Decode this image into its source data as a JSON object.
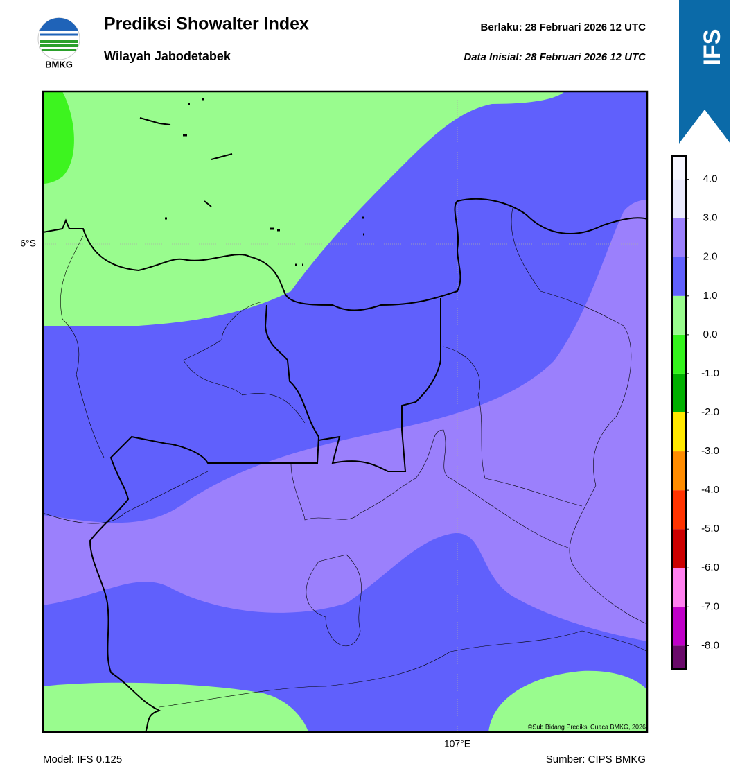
{
  "header": {
    "title": "Prediksi Showalter Index",
    "subtitle": "Wilayah Jabodetabek",
    "valid": "Berlaku:  28 Februari 2026 12 UTC",
    "init": "Data Inisial:  28 Februari 2026 12 UTC"
  },
  "logo": {
    "label": "BMKG"
  },
  "banner": {
    "label": "IFS"
  },
  "map": {
    "lat_label": "6°S",
    "lon_label": "107°E",
    "credit": "©Sub Bidang Prediksi Cuaca BMKG, 2026"
  },
  "colorbar": {
    "clim": [
      -8.6,
      4.6
    ],
    "ticks": [
      {
        "value": -8,
        "label": "-8.0"
      },
      {
        "value": -7,
        "label": "-7.0"
      },
      {
        "value": -6,
        "label": "-6.0"
      },
      {
        "value": -5,
        "label": "-5.0"
      },
      {
        "value": -4,
        "label": "-4.0"
      },
      {
        "value": -3,
        "label": "-3.0"
      },
      {
        "value": -2,
        "label": "-2.0"
      },
      {
        "value": -1,
        "label": "-1.0"
      },
      {
        "value": 0,
        "label": "0.0"
      },
      {
        "value": 1,
        "label": "1.0"
      },
      {
        "value": 2,
        "label": "2.0"
      },
      {
        "value": 3,
        "label": "3.0"
      },
      {
        "value": 4,
        "label": "4.0"
      }
    ],
    "colors": [
      "#6a0a6a",
      "#c000c8",
      "#ff80ee",
      "#cc0000",
      "#ff3300",
      "#ff8c00",
      "#ffe800",
      "#00b000",
      "#33f41c",
      "#99fc8e",
      "#6060fc",
      "#9b80fc",
      "#eaeafc",
      "#f6f6ff"
    ]
  },
  "footer": {
    "model": "Model: IFS 0.125",
    "source": "Sumber: CIPS BMKG"
  }
}
